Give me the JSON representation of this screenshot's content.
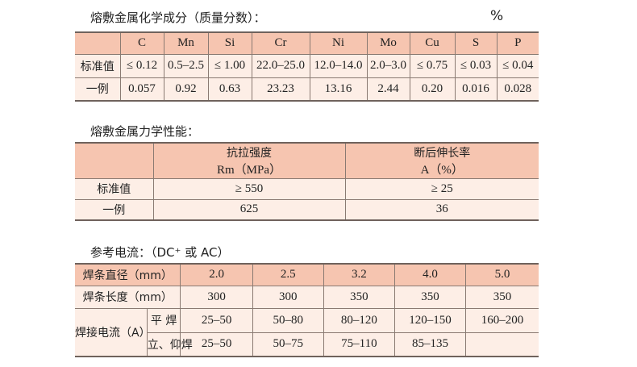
{
  "chem": {
    "title": "熔敷金属化学成分（质量分数）：",
    "unit": "%",
    "headers": [
      "",
      "C",
      "Mn",
      "Si",
      "Cr",
      "Ni",
      "Mo",
      "Cu",
      "S",
      "P"
    ],
    "rows": [
      [
        "标准值",
        "≤ 0.12",
        "0.5–2.5",
        "≤ 1.00",
        "22.0–25.0",
        "12.0–14.0",
        "2.0–3.0",
        "≤ 0.75",
        "≤ 0.03",
        "≤ 0.04"
      ],
      [
        "一例",
        "0.057",
        "0.92",
        "0.63",
        "23.23",
        "13.16",
        "2.44",
        "0.20",
        "0.016",
        "0.028"
      ]
    ]
  },
  "mech": {
    "title": "熔敷金属力学性能：",
    "headers": [
      [
        "",
        ""
      ],
      [
        "抗拉强度",
        "Rm（MPa）"
      ],
      [
        "断后伸长率",
        "A（%）"
      ]
    ],
    "rows": [
      [
        "标准值",
        "≥ 550",
        "≥ 25"
      ],
      [
        "一例",
        "625",
        "36"
      ]
    ]
  },
  "current": {
    "title": "参考电流：（DC⁺ 或 AC）",
    "diameter_label": "焊条直径（mm）",
    "diameters": [
      "2.0",
      "2.5",
      "3.2",
      "4.0",
      "5.0"
    ],
    "length_label": "焊条长度（mm）",
    "lengths": [
      "300",
      "300",
      "350",
      "350",
      "350"
    ],
    "current_label": "焊接电流（A）",
    "flat_label": "平 焊",
    "flat": [
      "25–50",
      "50–80",
      "80–120",
      "120–150",
      "160–200"
    ],
    "vert_label": "立、仰焊",
    "vert": [
      "25–50",
      "50–75",
      "75–110",
      "85–135",
      ""
    ]
  }
}
